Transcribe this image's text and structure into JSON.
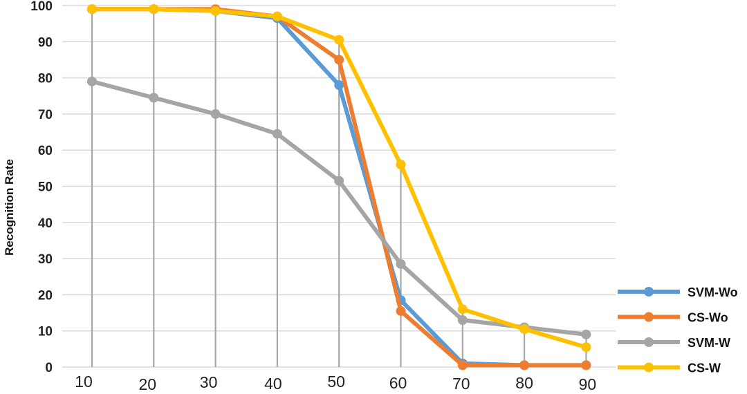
{
  "chart_data": {
    "type": "line",
    "ylabel": "Recognition Rate",
    "xlabel": "",
    "ylim": [
      0,
      100
    ],
    "yticks": [
      0,
      10,
      20,
      30,
      40,
      50,
      60,
      70,
      80,
      90,
      100
    ],
    "x": [
      10,
      20,
      30,
      40,
      50,
      60,
      70,
      80,
      90
    ],
    "grid": "horizontal",
    "drop_lines": true,
    "legend_position": "bottom-right",
    "series": [
      {
        "name": "SVM-Wo",
        "color": "#5b9bd5",
        "values": [
          99,
          99,
          98.5,
          96.5,
          78,
          18.5,
          1,
          0.5,
          0.5
        ]
      },
      {
        "name": "CS-Wo",
        "color": "#ed7d31",
        "values": [
          99,
          99,
          99,
          97,
          85,
          15.5,
          0.5,
          0.5,
          0.5
        ]
      },
      {
        "name": "SVM-W",
        "color": "#a5a5a5",
        "values": [
          79,
          74.5,
          70,
          64.5,
          51.5,
          28.5,
          13,
          11,
          9
        ]
      },
      {
        "name": "CS-W",
        "color": "#ffc000",
        "values": [
          99,
          99,
          98.5,
          97,
          90.5,
          56,
          16,
          10.5,
          5.5
        ]
      }
    ]
  }
}
